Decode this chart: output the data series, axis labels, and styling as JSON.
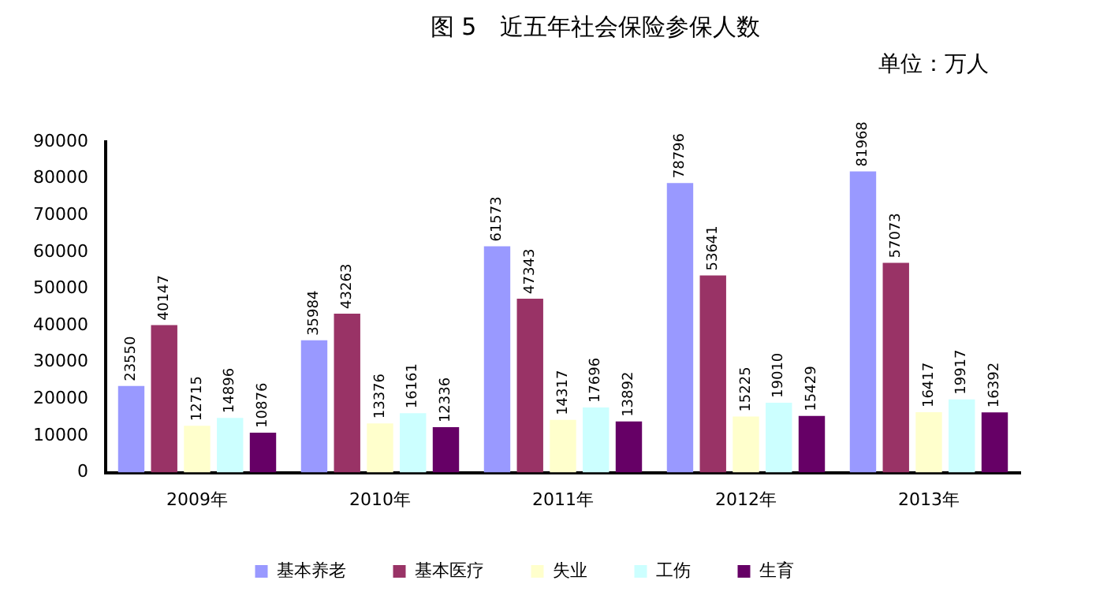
{
  "chart_data": {
    "type": "bar",
    "title": "图 5　近五年社会保险参保人数",
    "subtitle": "单位：万人",
    "categories": [
      "2009年",
      "2010年",
      "2011年",
      "2012年",
      "2013年"
    ],
    "series": [
      {
        "name": "基本养老",
        "color": "#9999ff",
        "values": [
          23550,
          35984,
          61573,
          78796,
          81968
        ]
      },
      {
        "name": "基本医疗",
        "color": "#993366",
        "values": [
          40147,
          43263,
          47343,
          53641,
          57073
        ]
      },
      {
        "name": "失业",
        "color": "#ffffcc",
        "values": [
          12715,
          13376,
          14317,
          15225,
          16417
        ]
      },
      {
        "name": "工伤",
        "color": "#ccffff",
        "values": [
          14896,
          16161,
          17696,
          19010,
          19917
        ]
      },
      {
        "name": "生育",
        "color": "#660066",
        "values": [
          10876,
          12336,
          13892,
          15429,
          16392
        ]
      }
    ],
    "ylim": [
      0,
      90000
    ],
    "yticks": [
      0,
      10000,
      20000,
      30000,
      40000,
      50000,
      60000,
      70000,
      80000,
      90000
    ],
    "grid": false,
    "legend": "bottom",
    "data_labels": true
  }
}
